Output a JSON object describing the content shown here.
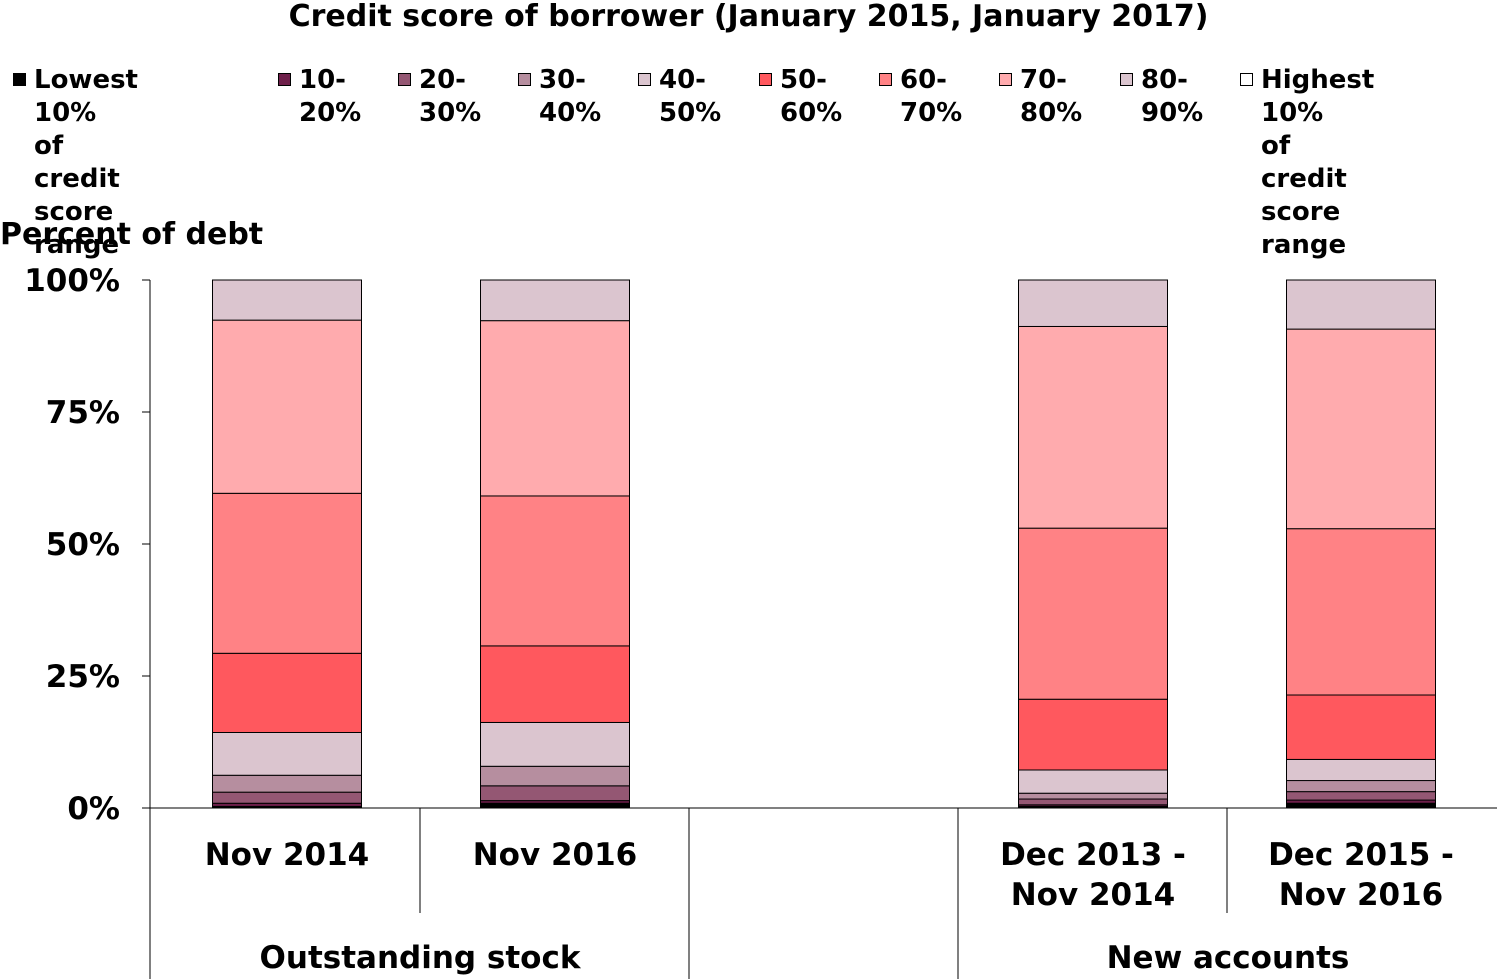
{
  "chart_data": {
    "type": "bar",
    "stacked": true,
    "title": "Credit score of borrower (January 2015, January 2017)",
    "ylabel": "Percent of debt",
    "ylim": [
      0,
      100
    ],
    "yticks": [
      "0%",
      "25%",
      "50%",
      "75%",
      "100%"
    ],
    "categories": [
      "Nov 2014",
      "Nov 2016",
      "",
      "Dec 2013 - Nov 2014",
      "Dec 2015 - Nov 2016"
    ],
    "groups": [
      {
        "label": "Outstanding stock",
        "categories": [
          "Nov 2014",
          "Nov 2016",
          ""
        ]
      },
      {
        "label": "New accounts",
        "categories": [
          "Dec 2013 - Nov 2014",
          "Dec 2015 - Nov 2016"
        ]
      }
    ],
    "legend_position": "top",
    "series": [
      {
        "name": "Lowest 10%\nof credit score\nrange",
        "color": "#000000",
        "values": [
          0.3,
          0.9,
          null,
          0.3,
          0.9
        ]
      },
      {
        "name": "10-\n20%",
        "color": "#6e1f4a",
        "values": [
          0.6,
          0.5,
          null,
          0.3,
          0.6
        ]
      },
      {
        "name": "20-\n30%",
        "color": "#945773",
        "values": [
          2.1,
          2.8,
          null,
          1.1,
          1.6
        ]
      },
      {
        "name": "30-\n40%",
        "color": "#b68e9f",
        "values": [
          3.2,
          3.7,
          null,
          1.1,
          2.1
        ]
      },
      {
        "name": "40-\n50%",
        "color": "#dbc5cf",
        "values": [
          8.1,
          8.3,
          null,
          4.4,
          4.0
        ]
      },
      {
        "name": "50-\n60%",
        "color": "#ff585e",
        "values": [
          15.0,
          14.5,
          null,
          13.4,
          12.2
        ]
      },
      {
        "name": "60-\n70%",
        "color": "#ff8285",
        "values": [
          30.3,
          28.4,
          null,
          32.4,
          31.5
        ]
      },
      {
        "name": "70-\n80%",
        "color": "#ffabae",
        "values": [
          32.8,
          33.2,
          null,
          38.2,
          37.8
        ]
      },
      {
        "name": "80-\n90%",
        "color": "#dbc5cf",
        "values": [
          7.6,
          7.7,
          null,
          8.8,
          9.3
        ]
      },
      {
        "name": "Highest 10%\nof credit score\nrange",
        "color": "#ffffff",
        "values": [
          0,
          0,
          null,
          0,
          0
        ]
      }
    ]
  }
}
